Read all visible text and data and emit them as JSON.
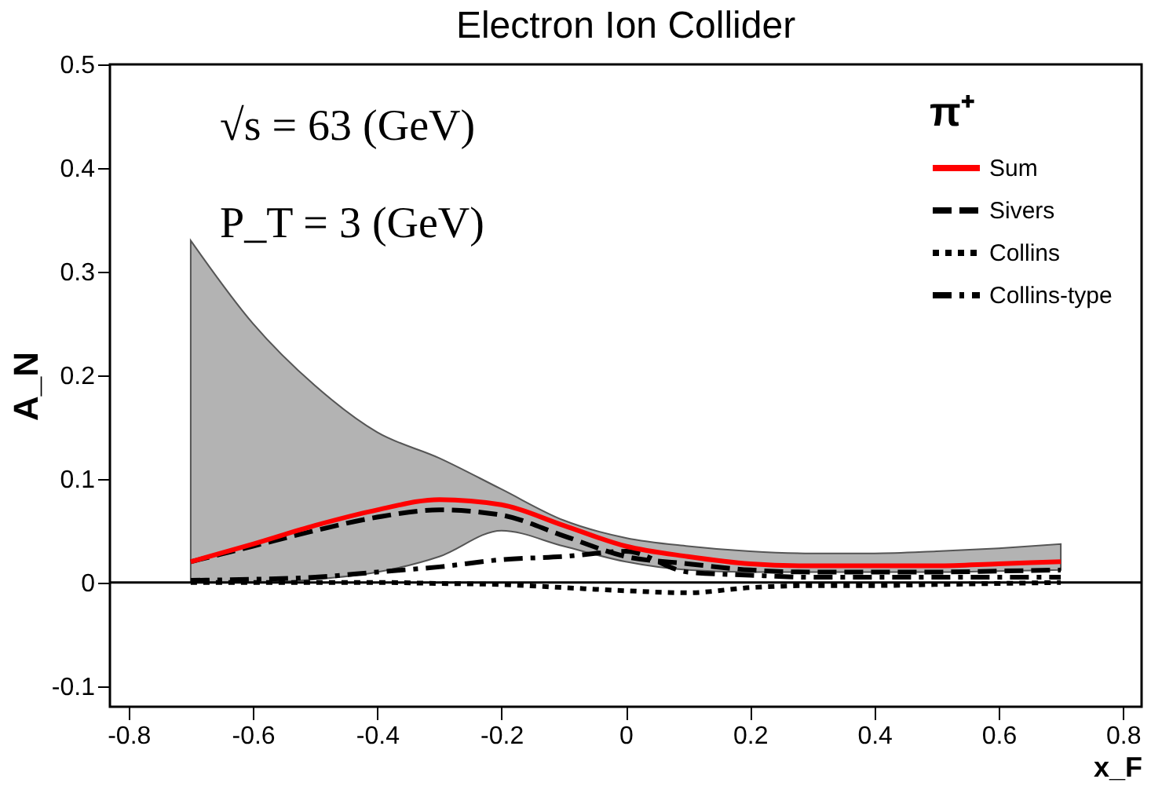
{
  "chart_data": {
    "type": "line",
    "title": "Electron Ion Collider",
    "xlabel": "x_F",
    "ylabel": "A_N",
    "legend_title": "π⁺",
    "legend": "top right",
    "x": [
      -0.7,
      -0.6,
      -0.5,
      -0.4,
      -0.3,
      -0.2,
      -0.1,
      0,
      0.1,
      0.2,
      0.3,
      0.4,
      0.5,
      0.6,
      0.7
    ],
    "series": [
      {
        "name": "Sum",
        "color": "#ff0000",
        "line_style": "solid",
        "values": [
          0.02,
          0.037,
          0.055,
          0.07,
          0.08,
          0.075,
          0.055,
          0.035,
          0.025,
          0.018,
          0.016,
          0.016,
          0.016,
          0.018,
          0.02
        ],
        "lower": [
          0.0,
          0.0,
          0.003,
          0.01,
          0.025,
          0.05,
          0.035,
          0.02,
          0.012,
          0.01,
          0.01,
          0.01,
          0.01,
          0.011,
          0.012
        ],
        "upper": [
          0.33,
          0.25,
          0.19,
          0.145,
          0.12,
          0.09,
          0.06,
          0.043,
          0.035,
          0.03,
          0.028,
          0.028,
          0.03,
          0.033,
          0.037
        ]
      },
      {
        "name": "Sivers",
        "color": "#000000",
        "line_style": "dashed",
        "values": [
          0.02,
          0.035,
          0.05,
          0.063,
          0.07,
          0.065,
          0.045,
          0.025,
          0.018,
          0.012,
          0.01,
          0.01,
          0.01,
          0.011,
          0.012
        ]
      },
      {
        "name": "Collins",
        "color": "#000000",
        "line_style": "dotted",
        "values": [
          0.0,
          0.0,
          0.0,
          0.0,
          -0.001,
          -0.002,
          -0.005,
          -0.008,
          -0.01,
          -0.005,
          -0.003,
          -0.003,
          -0.002,
          -0.001,
          0.0
        ]
      },
      {
        "name": "Collins-type",
        "color": "#000000",
        "line_style": "dashdot",
        "values": [
          0.002,
          0.003,
          0.005,
          0.01,
          0.015,
          0.022,
          0.025,
          0.03,
          0.01,
          0.007,
          0.005,
          0.005,
          0.005,
          0.005,
          0.005
        ]
      }
    ],
    "xlim": [
      -0.83,
      0.83
    ],
    "xticks": [
      -0.8,
      -0.6,
      -0.4,
      -0.2,
      0,
      0.2,
      0.4,
      0.6,
      0.8
    ],
    "ylim": [
      -0.12,
      0.5
    ],
    "yticks": [
      -0.1,
      0,
      0.1,
      0.2,
      0.3,
      0.4,
      0.5
    ],
    "ref_lines": [
      {
        "axis": "y",
        "value": 0
      }
    ],
    "annotations": [
      "√s = 63 (GeV)",
      "P_T = 3 (GeV)"
    ],
    "grid": false,
    "marker": "none"
  }
}
